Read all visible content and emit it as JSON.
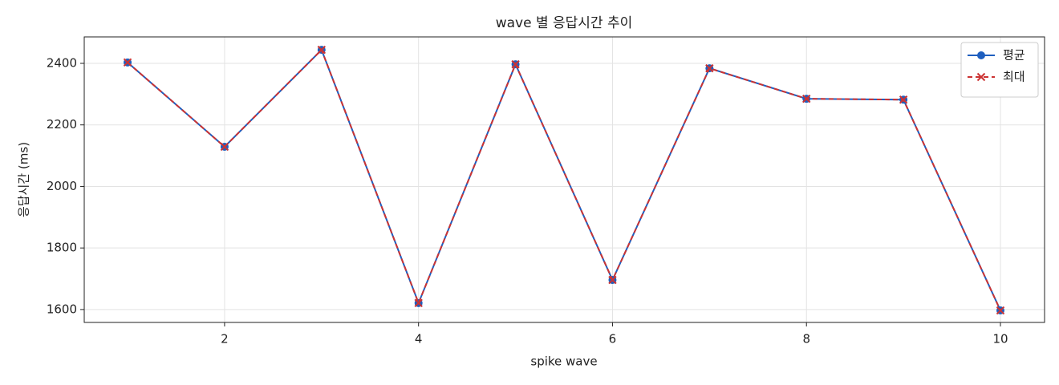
{
  "chart_data": {
    "type": "line",
    "title": "wave 별 응답시간 추이",
    "xlabel": "spike wave",
    "ylabel": "응답시간 (ms)",
    "x": [
      1,
      2,
      3,
      4,
      5,
      6,
      7,
      8,
      9,
      10
    ],
    "series": [
      {
        "name": "평균",
        "color": "#1f5fbf",
        "linestyle": "solid",
        "marker": "circle",
        "values": [
          2403,
          2129,
          2444,
          1621,
          2397,
          1696,
          2384,
          2285,
          2282,
          1597
        ]
      },
      {
        "name": "최대",
        "color": "#cc3333",
        "linestyle": "dashed",
        "marker": "x",
        "values": [
          2403,
          2129,
          2444,
          1621,
          2397,
          1696,
          2384,
          2285,
          2282,
          1597
        ]
      }
    ],
    "xlim": [
      0.553,
      10.455
    ],
    "ylim": [
      1558,
      2486
    ],
    "xticks": [
      2,
      4,
      6,
      8,
      10
    ],
    "yticks": [
      1600,
      1800,
      2000,
      2200,
      2400
    ],
    "grid": true,
    "legend": "upper-right"
  }
}
